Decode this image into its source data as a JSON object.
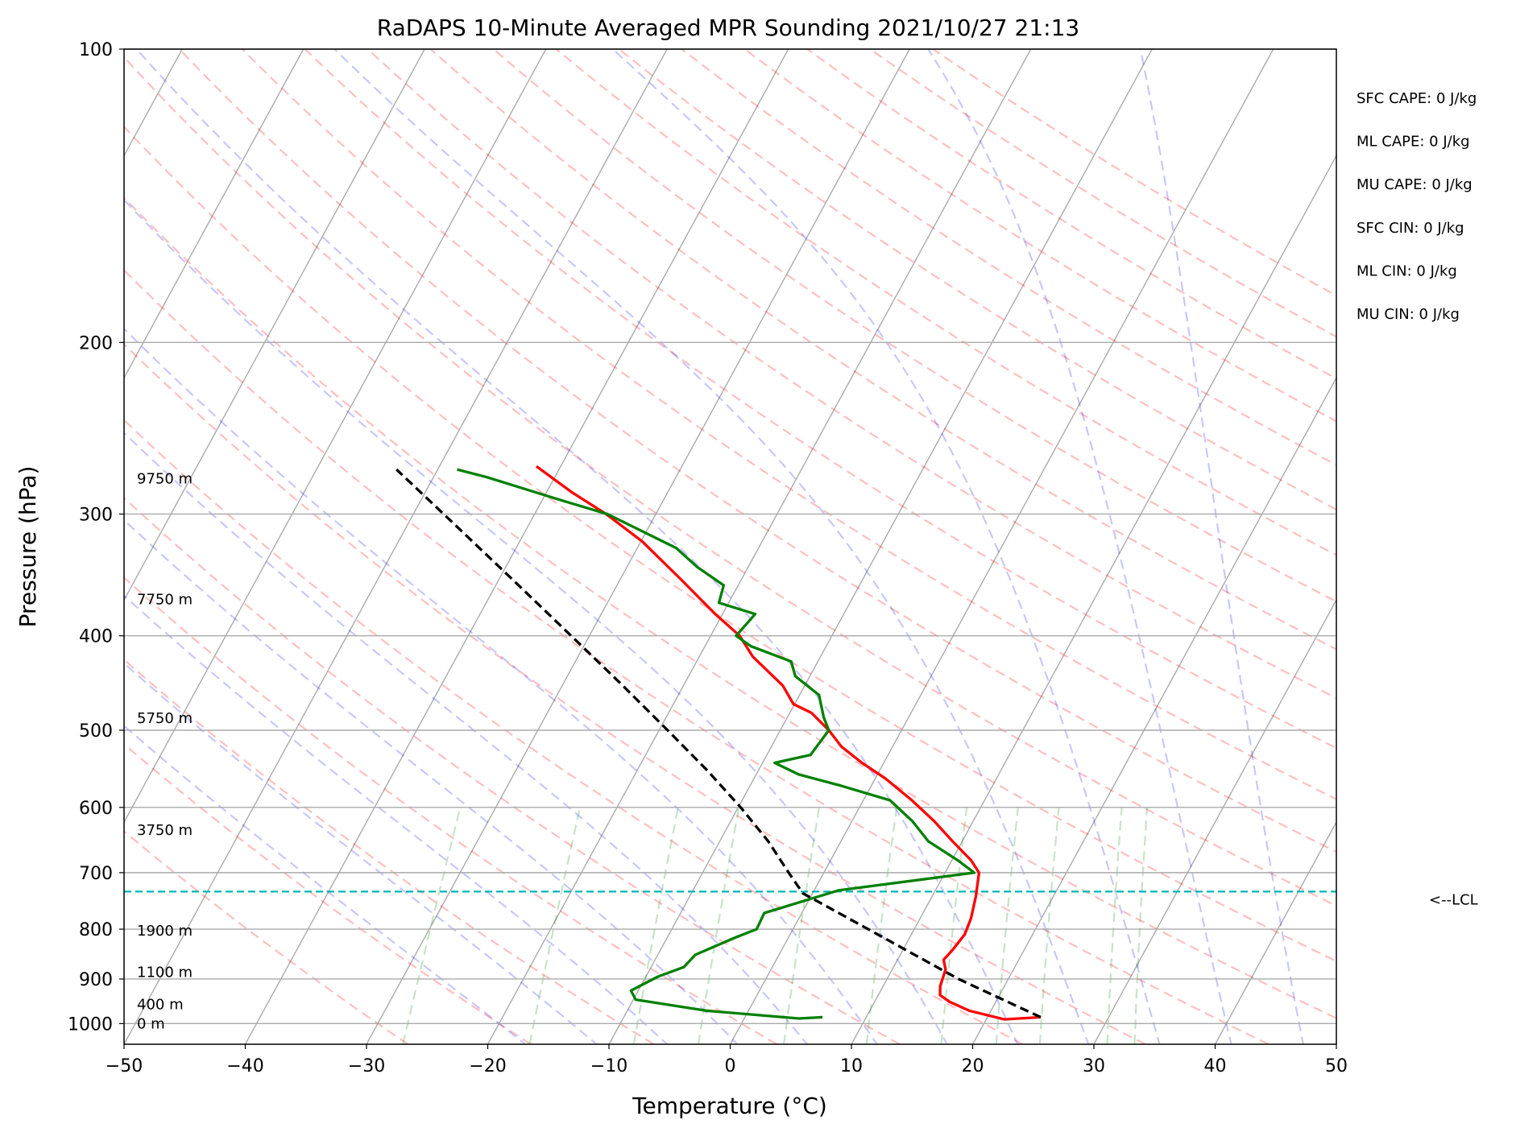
{
  "chart_data": {
    "type": "line",
    "subtype": "skew-T log-P sounding",
    "title": "RaDAPS 10-Minute Averaged MPR Sounding 2021/10/27 21:13",
    "xlabel": "Temperature (°C)",
    "ylabel": "Pressure (hPa)",
    "xlim": [
      -50,
      50
    ],
    "ylim": [
      1050,
      100
    ],
    "y_scale": "log",
    "x_ticks": [
      -50,
      -40,
      -30,
      -20,
      -10,
      0,
      10,
      20,
      30,
      40,
      50
    ],
    "x_tick_labels": [
      "−50",
      "−40",
      "−30",
      "−20",
      "−10",
      "0",
      "10",
      "20",
      "30",
      "40",
      "50"
    ],
    "y_ticks": [
      100,
      200,
      300,
      400,
      500,
      600,
      700,
      800,
      900,
      1000
    ],
    "y_tick_labels": [
      "100",
      "200",
      "300",
      "400",
      "500",
      "600",
      "700",
      "800",
      "900",
      "1000"
    ],
    "grid": true,
    "series": [
      {
        "key": "temperature",
        "color": "#ff0000",
        "points": [
          [
            985,
            24.4
          ],
          [
            990,
            21.5
          ],
          [
            970,
            18.2
          ],
          [
            950,
            16.2
          ],
          [
            935,
            15.1
          ],
          [
            915,
            14.7
          ],
          [
            880,
            14.4
          ],
          [
            860,
            13.8
          ],
          [
            840,
            14.1
          ],
          [
            810,
            14.4
          ],
          [
            780,
            14.2
          ],
          [
            740,
            13.6
          ],
          [
            700,
            12.8
          ],
          [
            680,
            11.6
          ],
          [
            650,
            9.2
          ],
          [
            620,
            6.8
          ],
          [
            590,
            4.0
          ],
          [
            560,
            0.8
          ],
          [
            540,
            -1.8
          ],
          [
            520,
            -4.2
          ],
          [
            500,
            -6.0
          ],
          [
            480,
            -8.2
          ],
          [
            470,
            -10.1
          ],
          [
            450,
            -11.8
          ],
          [
            420,
            -15.6
          ],
          [
            400,
            -17.6
          ],
          [
            380,
            -20.6
          ],
          [
            350,
            -25.0
          ],
          [
            320,
            -29.9
          ],
          [
            300,
            -34.1
          ],
          [
            285,
            -37.9
          ],
          [
            268,
            -42.0
          ]
        ]
      },
      {
        "key": "dewpoint",
        "color": "#008000",
        "points": [
          [
            985,
            6.4
          ],
          [
            988,
            4.5
          ],
          [
            970,
            -3.5
          ],
          [
            945,
            -9.8
          ],
          [
            925,
            -10.6
          ],
          [
            895,
            -9.0
          ],
          [
            875,
            -7.3
          ],
          [
            850,
            -6.9
          ],
          [
            815,
            -4.3
          ],
          [
            800,
            -3.0
          ],
          [
            770,
            -3.1
          ],
          [
            730,
            2.0
          ],
          [
            700,
            12.4
          ],
          [
            680,
            10.5
          ],
          [
            650,
            7.2
          ],
          [
            620,
            5.0
          ],
          [
            590,
            2.2
          ],
          [
            570,
            -2.5
          ],
          [
            555,
            -6.5
          ],
          [
            540,
            -9.0
          ],
          [
            530,
            -6.4
          ],
          [
            500,
            -6.0
          ],
          [
            485,
            -7.0
          ],
          [
            460,
            -8.4
          ],
          [
            440,
            -11.2
          ],
          [
            425,
            -12.2
          ],
          [
            410,
            -16.2
          ],
          [
            400,
            -17.9
          ],
          [
            380,
            -17.3
          ],
          [
            370,
            -20.8
          ],
          [
            355,
            -21.2
          ],
          [
            340,
            -24.2
          ],
          [
            325,
            -26.8
          ],
          [
            300,
            -34.0
          ],
          [
            290,
            -38.6
          ],
          [
            275,
            -45.6
          ],
          [
            270,
            -48.4
          ]
        ]
      },
      {
        "key": "parcel",
        "color": "#000000",
        "dash": "dashed",
        "points": [
          [
            985,
            24.4
          ],
          [
            900,
            15.9
          ],
          [
            800,
            6.2
          ],
          [
            735,
            -0.8
          ],
          [
            700,
            -2.9
          ],
          [
            650,
            -6.0
          ],
          [
            600,
            -9.8
          ],
          [
            550,
            -14.2
          ],
          [
            500,
            -19.3
          ],
          [
            450,
            -25.0
          ],
          [
            400,
            -31.5
          ],
          [
            350,
            -38.9
          ],
          [
            300,
            -47.5
          ],
          [
            270,
            -53.4
          ]
        ]
      }
    ],
    "lcl_pressure_hpa": 732,
    "lcl_label": "<--LCL",
    "height_labels": [
      {
        "text": "9750 m",
        "pressure": 276
      },
      {
        "text": "7750 m",
        "pressure": 367
      },
      {
        "text": "5750 m",
        "pressure": 486
      },
      {
        "text": "3750 m",
        "pressure": 633
      },
      {
        "text": "1900 m",
        "pressure": 803
      },
      {
        "text": "1100 m",
        "pressure": 886
      },
      {
        "text": "400 m",
        "pressure": 956
      },
      {
        "text": "0 m",
        "pressure": 1000
      }
    ],
    "annotations": [
      {
        "label": "SFC CAPE",
        "value": "0 J/kg"
      },
      {
        "label": "ML CAPE",
        "value": "0 J/kg"
      },
      {
        "label": "MU CAPE",
        "value": "0 J/kg"
      },
      {
        "label": "SFC CIN",
        "value": "0 J/kg"
      },
      {
        "label": "ML CIN",
        "value": "0 J/kg"
      },
      {
        "label": "MU CIN",
        "value": "0 J/kg"
      }
    ],
    "colors": {
      "isotherm": "#aaaaaa",
      "dry_adiabat": "#ff0000",
      "moist_adiabat": "#0000ff",
      "mixing_ratio": "#008000",
      "lcl": "#00b5b5",
      "grid": "#aaaaaa"
    }
  }
}
